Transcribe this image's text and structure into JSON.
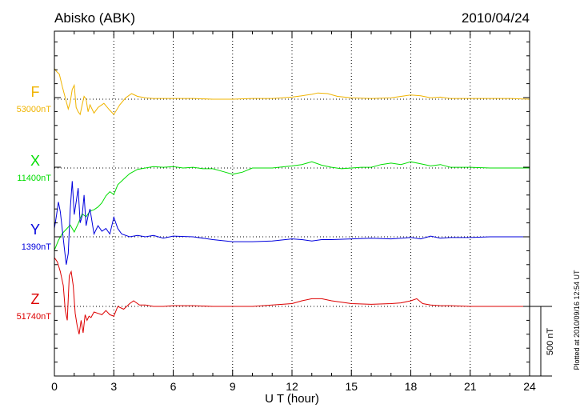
{
  "chart_data": {
    "type": "line",
    "title": "Abisko (ABK)",
    "date": "2010/04/24",
    "xlabel": "U T (hour)",
    "xlim": [
      0,
      24
    ],
    "xticks": [
      "0",
      "3",
      "6",
      "9",
      "12",
      "15",
      "18",
      "21",
      "24"
    ],
    "grid": true,
    "scale_bar_label": "500 nT",
    "plotted_note": "Plotted at 2010/09/16 12:54 UT",
    "series": [
      {
        "name": "F",
        "baseline_label": "53000nT",
        "color": "#f0b400",
        "x": [
          0,
          0.1,
          0.25,
          0.4,
          0.55,
          0.7,
          0.8,
          0.9,
          1.0,
          1.1,
          1.2,
          1.3,
          1.4,
          1.5,
          1.6,
          1.7,
          1.8,
          2.0,
          2.2,
          2.5,
          2.8,
          3.0,
          3.3,
          3.6,
          3.9,
          4.2,
          4.6,
          5.0,
          6.0,
          7.0,
          8.0,
          9.0,
          10.0,
          11.0,
          12.0,
          12.5,
          13.0,
          13.3,
          13.8,
          14.3,
          15.0,
          16.0,
          17.0,
          17.5,
          18.0,
          18.5,
          19.0,
          19.5,
          20.0,
          21.0,
          22.0,
          23.0,
          24.0
        ],
        "values": [
          220,
          200,
          180,
          90,
          10,
          -70,
          -20,
          70,
          100,
          -60,
          -90,
          -110,
          -40,
          20,
          0,
          -90,
          -40,
          -100,
          -60,
          -30,
          -80,
          -110,
          -40,
          10,
          40,
          20,
          10,
          5,
          5,
          5,
          0,
          0,
          5,
          5,
          15,
          25,
          35,
          45,
          40,
          20,
          10,
          5,
          10,
          20,
          30,
          25,
          10,
          15,
          5,
          5,
          5,
          5,
          0
        ]
      },
      {
        "name": "X",
        "baseline_label": "11400nT",
        "color": "#00dd00",
        "x": [
          0,
          0.2,
          0.4,
          0.6,
          0.8,
          1.0,
          1.2,
          1.4,
          1.6,
          1.8,
          2.0,
          2.2,
          2.4,
          2.6,
          2.8,
          3.0,
          3.2,
          3.5,
          3.8,
          4.2,
          4.6,
          5.0,
          5.5,
          6.0,
          6.5,
          7.0,
          7.5,
          8.0,
          8.5,
          9.0,
          9.5,
          10.0,
          11.0,
          12.0,
          12.5,
          13.0,
          13.5,
          14.0,
          14.5,
          15.0,
          15.5,
          16.0,
          16.5,
          17.0,
          17.5,
          18.0,
          18.5,
          19.0,
          19.5,
          20.0,
          21.0,
          22.0,
          23.0,
          24.0
        ],
        "values": [
          -590,
          -520,
          -470,
          -440,
          -410,
          -460,
          -400,
          -330,
          -350,
          -310,
          -300,
          -280,
          -250,
          -200,
          -170,
          -190,
          -120,
          -80,
          -40,
          -10,
          0,
          10,
          5,
          10,
          0,
          5,
          -5,
          -5,
          -25,
          -45,
          -30,
          0,
          0,
          15,
          25,
          45,
          20,
          5,
          -5,
          0,
          5,
          5,
          25,
          35,
          25,
          45,
          30,
          15,
          25,
          5,
          5,
          0,
          0,
          0
        ]
      },
      {
        "name": "Y",
        "baseline_label": "1390nT",
        "color": "#0000dd",
        "x": [
          0,
          0.1,
          0.2,
          0.3,
          0.4,
          0.5,
          0.6,
          0.7,
          0.8,
          0.9,
          1.0,
          1.1,
          1.2,
          1.3,
          1.4,
          1.5,
          1.6,
          1.7,
          1.8,
          2.0,
          2.2,
          2.4,
          2.6,
          2.8,
          3.0,
          3.2,
          3.4,
          3.8,
          4.2,
          4.6,
          5.0,
          5.5,
          6.0,
          7.0,
          8.0,
          9.0,
          10.0,
          11.0,
          12.0,
          12.5,
          13.0,
          13.5,
          14.0,
          15.0,
          16.0,
          17.0,
          18.0,
          18.5,
          19.0,
          19.5,
          20.0,
          21.0,
          22.0,
          23.0,
          24.0
        ],
        "values": [
          60,
          150,
          250,
          180,
          50,
          -80,
          -200,
          -120,
          200,
          400,
          160,
          250,
          350,
          100,
          150,
          300,
          80,
          150,
          200,
          20,
          80,
          40,
          60,
          20,
          140,
          60,
          20,
          0,
          10,
          0,
          10,
          -10,
          5,
          0,
          -20,
          -35,
          -35,
          -30,
          -15,
          -20,
          -30,
          -20,
          -20,
          -15,
          -10,
          -15,
          -5,
          -15,
          5,
          -10,
          -5,
          -5,
          0,
          0,
          0
        ]
      },
      {
        "name": "Z",
        "baseline_label": "51740nT",
        "color": "#dd0000",
        "x": [
          0,
          0.15,
          0.3,
          0.45,
          0.55,
          0.65,
          0.75,
          0.85,
          0.95,
          1.05,
          1.15,
          1.25,
          1.35,
          1.45,
          1.55,
          1.65,
          1.75,
          1.85,
          2.0,
          2.2,
          2.4,
          2.6,
          2.8,
          3.0,
          3.2,
          3.5,
          3.8,
          4.0,
          4.3,
          4.6,
          5.0,
          5.5,
          6.0,
          7.0,
          8.0,
          9.0,
          10.0,
          11.0,
          12.0,
          12.5,
          13.0,
          13.5,
          14.0,
          15.0,
          16.0,
          17.0,
          17.5,
          18.0,
          18.3,
          18.6,
          19.0,
          19.5,
          20.0,
          21.0,
          22.0,
          23.0,
          24.0
        ],
        "values": [
          350,
          320,
          250,
          150,
          -30,
          -100,
          220,
          250,
          150,
          -50,
          -140,
          -200,
          -100,
          -190,
          -60,
          -100,
          -70,
          -80,
          -40,
          -50,
          -60,
          -30,
          -60,
          -70,
          0,
          -20,
          20,
          40,
          10,
          10,
          0,
          0,
          5,
          5,
          0,
          0,
          0,
          10,
          20,
          40,
          55,
          55,
          40,
          20,
          15,
          20,
          25,
          40,
          55,
          20,
          10,
          5,
          5,
          0,
          0,
          0,
          0
        ]
      }
    ]
  }
}
